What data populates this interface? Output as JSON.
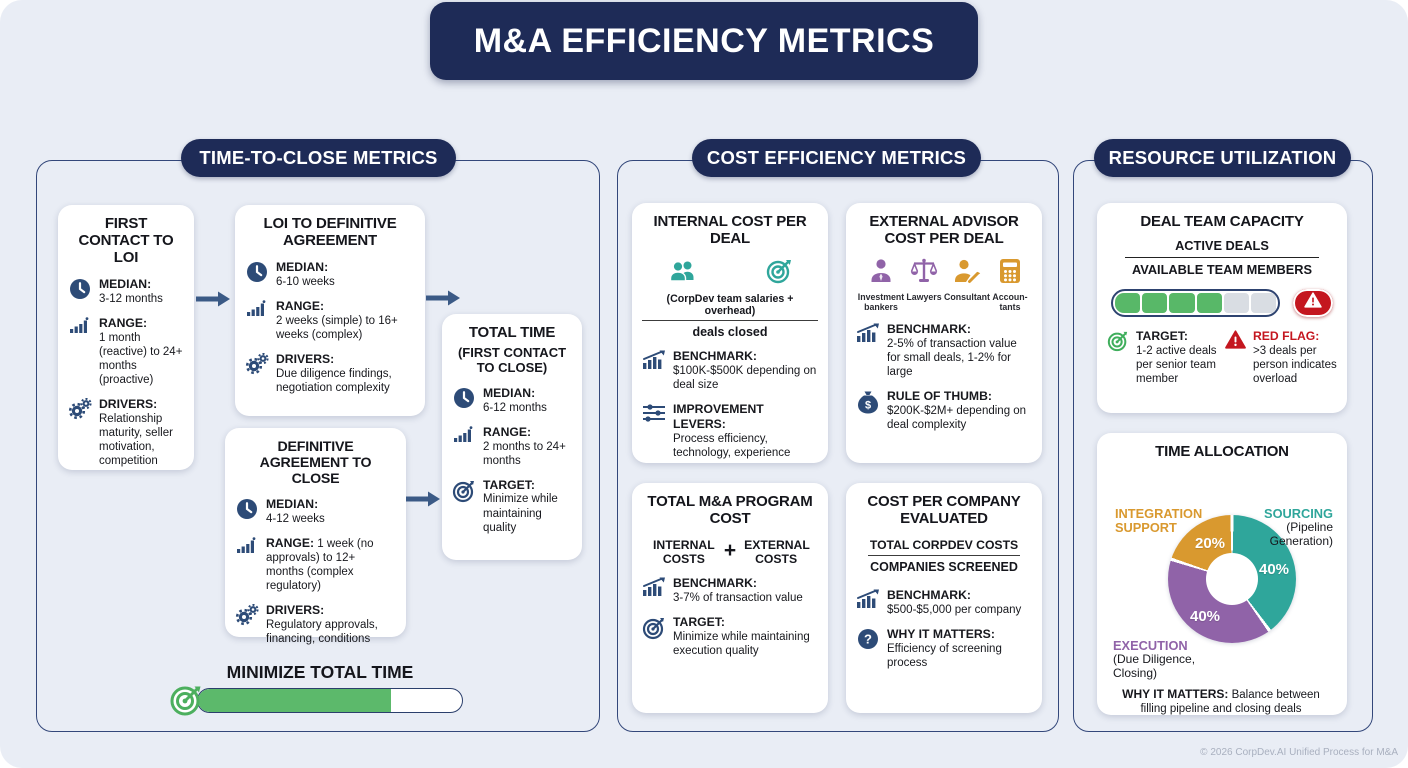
{
  "header": {
    "title": "M&A EFFICIENCY METRICS"
  },
  "sections": {
    "time": {
      "title": "TIME-TO-CLOSE METRICS",
      "first_contact": {
        "title": "FIRST CONTACT TO LOI",
        "median_label": "MEDIAN:",
        "median": "3-12 months",
        "median_icon": "clock-icon",
        "range_label": "RANGE:",
        "range": "1 month (reactive) to 24+ months (proactive)",
        "range_icon": "bar-chart-icon",
        "drivers_label": "DRIVERS:",
        "drivers": "Relationship maturity, seller motivation, competition",
        "drivers_icon": "gears-icon"
      },
      "loi_to_da": {
        "title": "LOI TO DEFINITIVE AGREEMENT",
        "median_label": "MEDIAN:",
        "median": "6-10 weeks",
        "range_label": "RANGE:",
        "range": "2 weeks (simple) to 16+ weeks (complex)",
        "drivers_label": "DRIVERS:",
        "drivers": "Due diligence findings, negotiation complexity"
      },
      "da_to_close": {
        "title": "DEFINITIVE AGREEMENT TO CLOSE",
        "median_label": "MEDIAN:",
        "median": "4-12 weeks",
        "range_label": "RANGE:",
        "range": "1 week (no approvals) to 12+ months (complex regulatory)",
        "drivers_label": "DRIVERS:",
        "drivers": "Regulatory approvals, financing, conditions"
      },
      "total_time": {
        "title": "TOTAL TIME",
        "subtitle": "(FIRST CONTACT TO CLOSE)",
        "median_label": "MEDIAN:",
        "median": "6-12 months",
        "range_label": "RANGE:",
        "range": "2 months to 24+ months",
        "target_label": "TARGET:",
        "target": "Minimize while maintaining quality",
        "target_icon": "target-icon"
      },
      "minimize": {
        "label": "MINIMIZE TOTAL TIME",
        "progress_pct": 73,
        "icon": "target-icon"
      }
    },
    "cost": {
      "title": "COST EFFICIENCY METRICS",
      "internal": {
        "title": "INTERNAL COST PER DEAL",
        "icons": [
          "team-icon",
          "target-icon"
        ],
        "formula_numerator": "(CorpDev team salaries + overhead)",
        "formula_denominator": "deals closed",
        "benchmark_label": "BENCHMARK:",
        "benchmark": "$100K-$500K depending on deal size",
        "benchmark_icon": "growth-chart-icon",
        "levers_label": "IMPROVEMENT LEVERS:",
        "levers": "Process efficiency, technology, experience",
        "levers_icon": "sliders-icon"
      },
      "external": {
        "title": "EXTERNAL ADVISOR COST PER DEAL",
        "advisors": [
          {
            "label": "Investment bankers",
            "icon": "banker-icon"
          },
          {
            "label": "Lawyers",
            "icon": "scales-icon"
          },
          {
            "label": "Consultant",
            "icon": "consultant-icon"
          },
          {
            "label": "Accoun-tants",
            "icon": "calculator-icon"
          }
        ],
        "benchmark_label": "BENCHMARK:",
        "benchmark": "2-5% of transaction value for small deals, 1-2% for large",
        "rule_label": "RULE OF THUMB:",
        "rule": "$200K-$2M+ depending on deal complexity",
        "rule_icon": "money-bag-icon"
      },
      "program": {
        "title": "TOTAL M&A PROGRAM COST",
        "formula_left": "INTERNAL COSTS",
        "formula_plus": "+",
        "formula_right": "EXTERNAL COSTS",
        "benchmark_label": "BENCHMARK:",
        "benchmark": "3-7% of transaction value",
        "target_label": "TARGET:",
        "target": "Minimize while maintaining execution quality"
      },
      "per_company": {
        "title": "COST PER COMPANY EVALUATED",
        "formula_numerator": "TOTAL CORPDEV COSTS",
        "formula_denominator": "COMPANIES SCREENED",
        "benchmark_label": "BENCHMARK:",
        "benchmark": "$500-$5,000 per company",
        "why_label": "WHY IT MATTERS:",
        "why": "Efficiency of screening process",
        "why_icon": "question-icon"
      }
    },
    "resource": {
      "title": "RESOURCE UTILIZATION",
      "capacity": {
        "title": "DEAL TEAM CAPACITY",
        "formula_numerator": "ACTIVE DEALS",
        "formula_denominator": "AVAILABLE TEAM MEMBERS",
        "segments_total": 6,
        "segments_filled": 4,
        "alert_icon": "warning-triangle-icon",
        "target_label": "TARGET:",
        "target": "1-2 active deals per senior team member",
        "target_icon": "target-icon",
        "redflag_label": "RED FLAG:",
        "redflag": ">3 deals per person indicates overload",
        "redflag_icon": "warning-triangle-icon"
      },
      "allocation": {
        "title": "TIME ALLOCATION",
        "slices": [
          {
            "name": "SOURCING",
            "detail": "(Pipeline Generation)",
            "pct_label": "40%"
          },
          {
            "name": "EXECUTION",
            "detail": "(Due Diligence, Closing)",
            "pct_label": "40%"
          },
          {
            "name": "INTEGRATION SUPPORT",
            "detail": "",
            "pct_label": "20%"
          }
        ],
        "why_label": "WHY IT MATTERS:",
        "why": "Balance between filling pipeline and closing deals"
      }
    }
  },
  "footer": {
    "copyright": "© 2026 CorpDev.AI Unified Process for M&A"
  },
  "colors": {
    "navy": "#1e2b57",
    "icon_navy": "#2d4b77",
    "arrow_navy": "#3b5a86",
    "teal": "#2fa69b",
    "purple": "#9063a8",
    "gold": "#d9992f",
    "green": "#5cb96b",
    "red": "#c4161f",
    "background": "#e9edf5"
  },
  "chart_data": {
    "type": "pie",
    "title": "TIME ALLOCATION",
    "labels": [
      "SOURCING (Pipeline Generation)",
      "EXECUTION (Due Diligence, Closing)",
      "INTEGRATION SUPPORT"
    ],
    "values": [
      40,
      40,
      20
    ],
    "colors": [
      "#2fa69b",
      "#9063a8",
      "#d9992f"
    ],
    "donut": true,
    "legend_position": "around-chart",
    "start_angle_deg": 0,
    "direction": "clockwise"
  }
}
